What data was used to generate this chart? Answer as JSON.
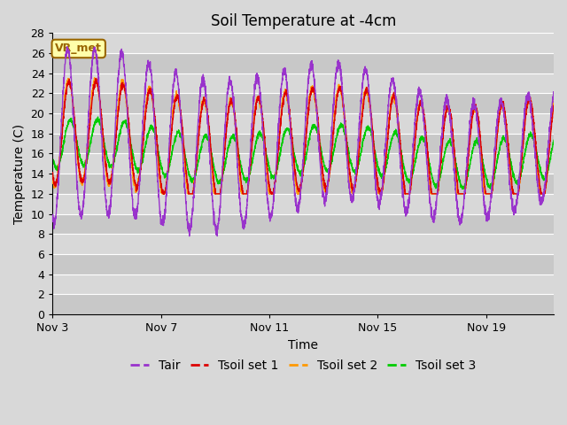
{
  "title": "Soil Temperature at -4cm",
  "xlabel": "Time",
  "ylabel": "Temperature (C)",
  "ylim": [
    0,
    28
  ],
  "xlim_days": [
    0,
    18.5
  ],
  "x_ticks_days": [
    0,
    4,
    8,
    12,
    16
  ],
  "x_tick_labels": [
    "Nov 3",
    "Nov 7",
    "Nov 11",
    "Nov 15",
    "Nov 19"
  ],
  "y_ticks": [
    0,
    2,
    4,
    6,
    8,
    10,
    12,
    14,
    16,
    18,
    20,
    22,
    24,
    26,
    28
  ],
  "colors": {
    "Tair": "#9933cc",
    "Tsoil1": "#dd0000",
    "Tsoil2": "#ff9900",
    "Tsoil3": "#00cc00"
  },
  "legend_labels": [
    "Tair",
    "Tsoil set 1",
    "Tsoil set 2",
    "Tsoil set 3"
  ],
  "fig_bg_color": "#d8d8d8",
  "plot_bg_color": "#d8d8d8",
  "grid_color": "#ffffff",
  "annotation_text": "VR_met",
  "annotation_bg": "#ffffaa",
  "annotation_border": "#996600",
  "title_fontsize": 12,
  "axis_label_fontsize": 10,
  "tick_fontsize": 9,
  "legend_fontsize": 10,
  "band_colors": [
    "#c8c8c8",
    "#d8d8d8"
  ]
}
